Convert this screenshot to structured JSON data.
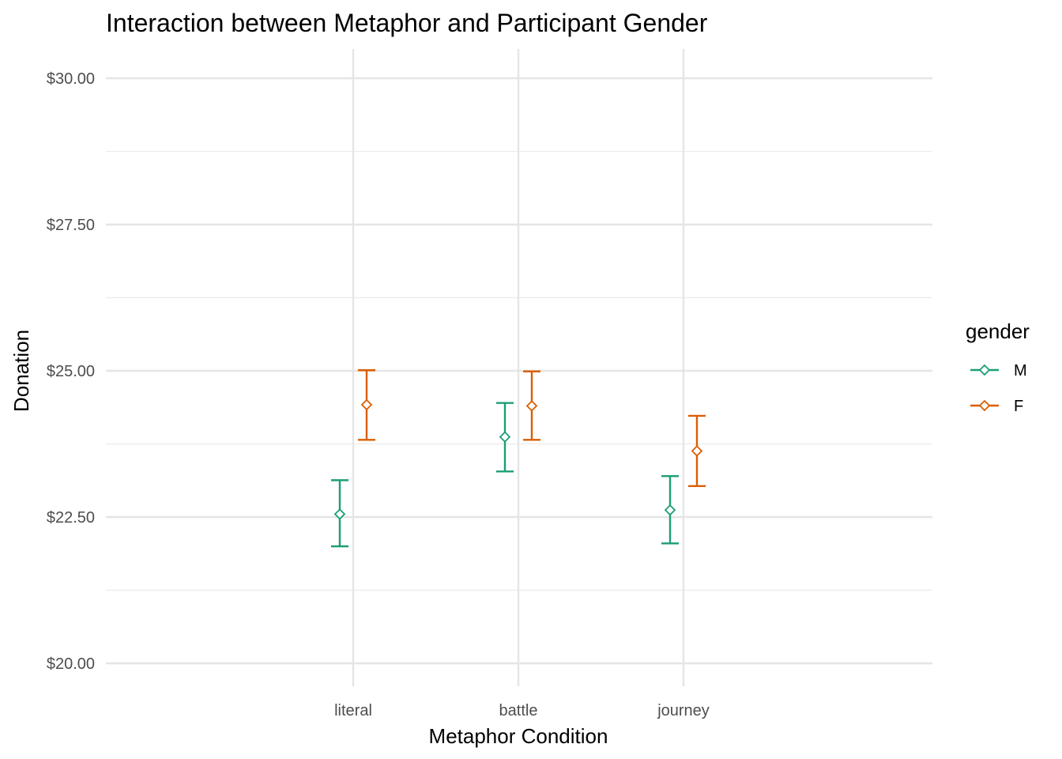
{
  "chart_data": {
    "type": "scatter",
    "title": "Interaction between Metaphor and Participant Gender",
    "xlabel": "Metaphor Condition",
    "ylabel": "Donation",
    "categories": [
      "literal",
      "battle",
      "journey"
    ],
    "ylim": [
      19.6,
      30.5
    ],
    "y_ticks": [
      20.0,
      22.5,
      25.0,
      27.5,
      30.0
    ],
    "y_tick_labels": [
      "$20.00",
      "$22.50",
      "$25.00",
      "$27.50",
      "$30.00"
    ],
    "grid": true,
    "legend_title": "gender",
    "legend_position": "right",
    "series": [
      {
        "name": "M",
        "color": "#1b9e77",
        "means": [
          22.55,
          23.87,
          22.62
        ],
        "lower": [
          22.0,
          23.28,
          22.05
        ],
        "upper": [
          23.13,
          24.45,
          23.2
        ]
      },
      {
        "name": "F",
        "color": "#d95f02",
        "means": [
          24.42,
          24.4,
          23.63
        ],
        "lower": [
          23.82,
          23.82,
          23.03
        ],
        "upper": [
          25.01,
          24.99,
          24.23
        ]
      }
    ]
  }
}
